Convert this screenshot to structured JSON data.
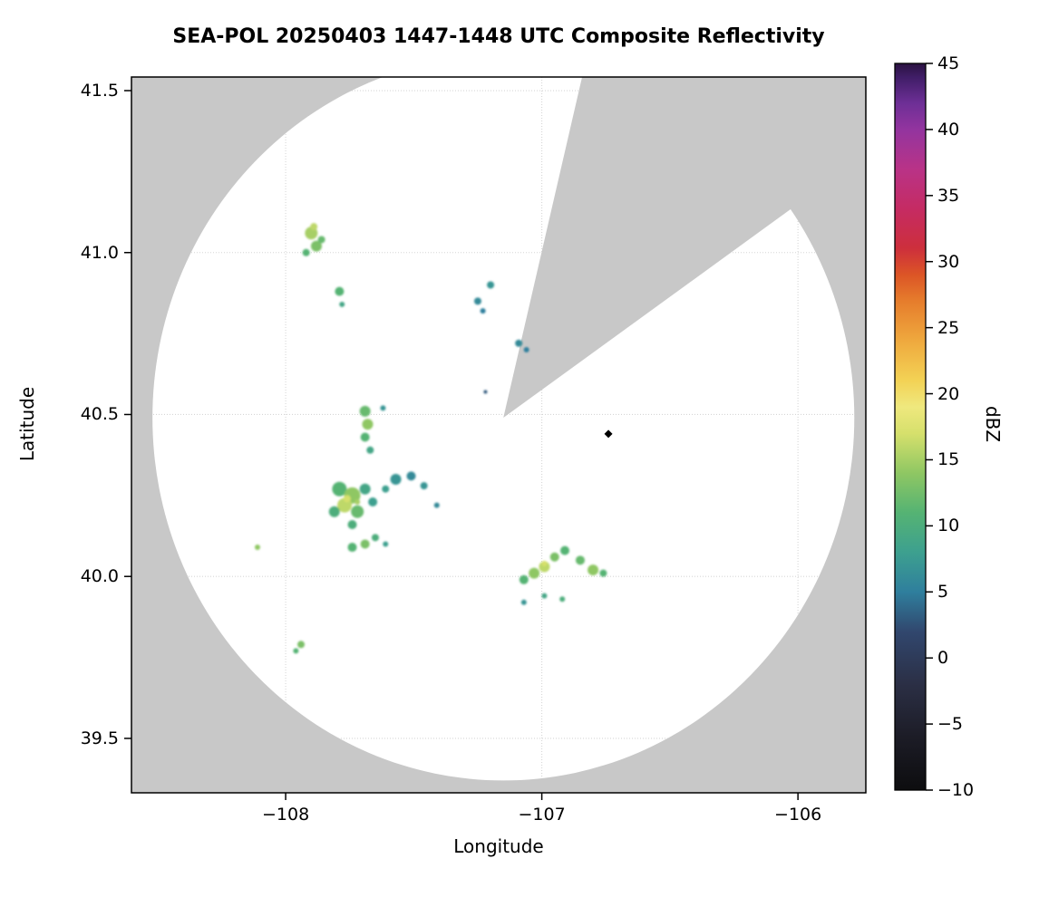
{
  "title": "SEA-POL 20250403 1447-1448 UTC Composite Reflectivity",
  "chart_data": {
    "type": "heatmap",
    "title": "SEA-POL 20250403 1447-1448 UTC Composite Reflectivity",
    "xlabel": "Longitude",
    "ylabel": "Latitude",
    "xlim": [
      -108.602,
      -105.735
    ],
    "ylim": [
      39.332,
      41.542
    ],
    "grid": true,
    "legend": "none",
    "background_color": "#c8c8c8",
    "coverage_color": "#ffffff",
    "x_ticks": [
      {
        "value": -108,
        "label": "−108"
      },
      {
        "value": -107,
        "label": "−107"
      },
      {
        "value": -106,
        "label": "−106"
      }
    ],
    "y_ticks": [
      {
        "value": 41.5,
        "label": "41.5"
      },
      {
        "value": 41.0,
        "label": "41.0"
      },
      {
        "value": 40.5,
        "label": "40.5"
      },
      {
        "value": 40.0,
        "label": "40.0"
      },
      {
        "value": 39.5,
        "label": "39.5"
      }
    ],
    "colorbar": {
      "label": "dBZ",
      "position": "right",
      "min": -10,
      "max": 45,
      "ticks": [
        {
          "value": 45,
          "label": "45"
        },
        {
          "value": 40,
          "label": "40"
        },
        {
          "value": 35,
          "label": "35"
        },
        {
          "value": 30,
          "label": "30"
        },
        {
          "value": 25,
          "label": "25"
        },
        {
          "value": 20,
          "label": "20"
        },
        {
          "value": 15,
          "label": "15"
        },
        {
          "value": 10,
          "label": "10"
        },
        {
          "value": 5,
          "label": "5"
        },
        {
          "value": 0,
          "label": "0"
        },
        {
          "value": -5,
          "label": "−5"
        },
        {
          "value": -10,
          "label": "−10"
        }
      ],
      "stops": [
        {
          "value": -10,
          "color": "#0d0d0f"
        },
        {
          "value": -6,
          "color": "#1c1c26"
        },
        {
          "value": -2,
          "color": "#2b2f45"
        },
        {
          "value": 2,
          "color": "#31476e"
        },
        {
          "value": 5,
          "color": "#2f7f9d"
        },
        {
          "value": 8,
          "color": "#3da08f"
        },
        {
          "value": 11,
          "color": "#55b373"
        },
        {
          "value": 14,
          "color": "#8fc763"
        },
        {
          "value": 17,
          "color": "#d6e06c"
        },
        {
          "value": 19,
          "color": "#efe87e"
        },
        {
          "value": 21,
          "color": "#f3d255"
        },
        {
          "value": 24,
          "color": "#efa93e"
        },
        {
          "value": 27,
          "color": "#e67d2c"
        },
        {
          "value": 29,
          "color": "#dc5526"
        },
        {
          "value": 31,
          "color": "#cd2f3c"
        },
        {
          "value": 34,
          "color": "#c52b63"
        },
        {
          "value": 37,
          "color": "#b93387"
        },
        {
          "value": 40,
          "color": "#93349f"
        },
        {
          "value": 42,
          "color": "#6d2f96"
        },
        {
          "value": 44,
          "color": "#3f1d66"
        },
        {
          "value": 45,
          "color": "#2a1240"
        }
      ]
    },
    "radar": {
      "center": [
        -107.15,
        40.49
      ],
      "radius_lon": 1.37,
      "radius_lat": 1.12,
      "blocked_sector": {
        "azimuth_start_deg": 13,
        "azimuth_end_deg": 54
      }
    },
    "site_marker": {
      "lon": -106.74,
      "lat": 40.44,
      "color": "#000000",
      "shape": "diamond"
    },
    "echoes_format": [
      "lon",
      "lat",
      "dbz",
      "radius_px"
    ],
    "echoes": [
      [
        -107.9,
        41.06,
        15,
        7
      ],
      [
        -107.88,
        41.02,
        13,
        6
      ],
      [
        -107.92,
        41.0,
        11,
        4
      ],
      [
        -107.89,
        41.08,
        16,
        4
      ],
      [
        -107.86,
        41.04,
        12,
        4
      ],
      [
        -107.79,
        40.88,
        11,
        5
      ],
      [
        -107.78,
        40.84,
        9,
        3
      ],
      [
        -107.25,
        40.85,
        6,
        4
      ],
      [
        -107.2,
        40.9,
        7,
        4
      ],
      [
        -107.23,
        40.82,
        5,
        3
      ],
      [
        -107.09,
        40.72,
        6,
        4
      ],
      [
        -107.06,
        40.7,
        5,
        3
      ],
      [
        -107.22,
        40.57,
        3,
        2
      ],
      [
        -107.69,
        40.51,
        12,
        6
      ],
      [
        -107.68,
        40.47,
        14,
        6
      ],
      [
        -107.69,
        40.43,
        11,
        5
      ],
      [
        -107.67,
        40.39,
        9,
        4
      ],
      [
        -107.62,
        40.52,
        7,
        3
      ],
      [
        -107.79,
        40.27,
        11,
        8
      ],
      [
        -107.74,
        40.25,
        14,
        9
      ],
      [
        -107.77,
        40.22,
        16,
        8
      ],
      [
        -107.72,
        40.2,
        12,
        7
      ],
      [
        -107.81,
        40.2,
        10,
        6
      ],
      [
        -107.69,
        40.27,
        9,
        6
      ],
      [
        -107.66,
        40.23,
        8,
        5
      ],
      [
        -107.74,
        40.16,
        10,
        5
      ],
      [
        -107.76,
        40.24,
        17,
        4
      ],
      [
        -107.72,
        40.23,
        15,
        3
      ],
      [
        -107.57,
        40.3,
        7,
        6
      ],
      [
        -107.51,
        40.31,
        6,
        5
      ],
      [
        -107.46,
        40.28,
        7,
        4
      ],
      [
        -107.61,
        40.27,
        8,
        4
      ],
      [
        -107.41,
        40.22,
        6,
        3
      ],
      [
        -107.74,
        40.09,
        11,
        5
      ],
      [
        -107.69,
        40.1,
        13,
        5
      ],
      [
        -107.65,
        40.12,
        10,
        4
      ],
      [
        -107.61,
        40.1,
        8,
        3
      ],
      [
        -108.11,
        40.09,
        14,
        3
      ],
      [
        -107.07,
        39.99,
        11,
        5
      ],
      [
        -107.03,
        40.01,
        14,
        6
      ],
      [
        -106.99,
        40.03,
        16,
        6
      ],
      [
        -106.95,
        40.06,
        13,
        5
      ],
      [
        -106.91,
        40.08,
        11,
        5
      ],
      [
        -106.85,
        40.05,
        12,
        5
      ],
      [
        -106.8,
        40.02,
        14,
        6
      ],
      [
        -106.76,
        40.01,
        11,
        4
      ],
      [
        -106.99,
        40.04,
        17,
        3
      ],
      [
        -107.07,
        39.92,
        7,
        3
      ],
      [
        -106.99,
        39.94,
        9,
        3
      ],
      [
        -106.92,
        39.93,
        10,
        3
      ],
      [
        -107.94,
        39.79,
        13,
        4
      ],
      [
        -107.96,
        39.77,
        11,
        3
      ]
    ]
  }
}
